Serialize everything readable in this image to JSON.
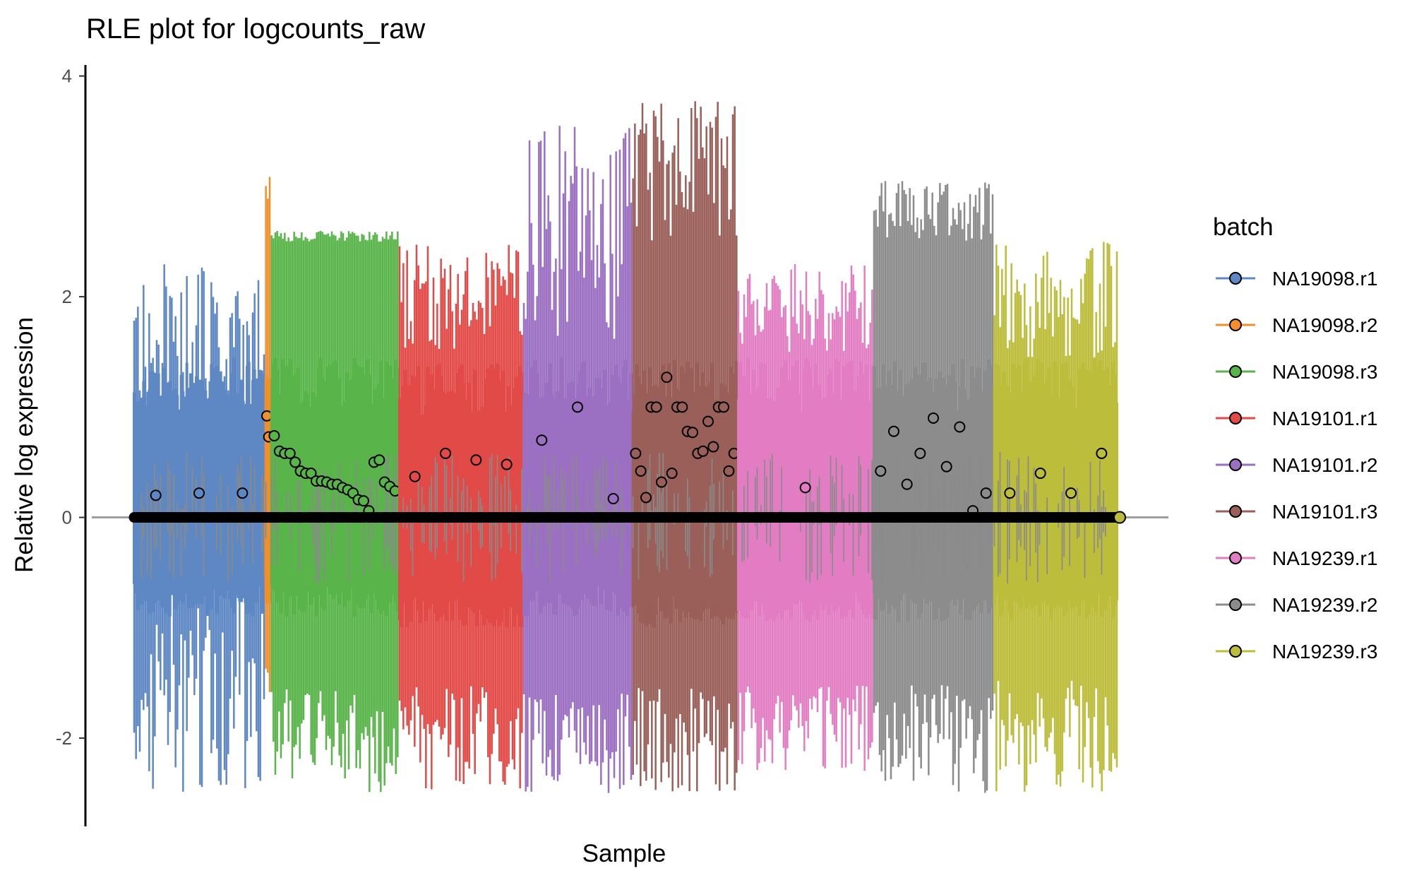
{
  "chart_data": {
    "type": "box",
    "title": "RLE plot for logcounts_raw",
    "xlabel": "Sample",
    "ylabel": "Relative log expression",
    "ylim": [
      -2.8,
      4.1
    ],
    "yticks": [
      -2,
      0,
      2,
      4
    ],
    "reference_line": 0,
    "grid": false,
    "legend": {
      "title": "batch",
      "position": "right",
      "entries": [
        "NA19098.r1",
        "NA19098.r2",
        "NA19098.r3",
        "NA19101.r1",
        "NA19101.r2",
        "NA19101.r3",
        "NA19239.r1",
        "NA19239.r2",
        "NA19239.r3"
      ]
    },
    "series": [
      {
        "name": "NA19098.r1",
        "color": "#5E88C3",
        "n_samples": 70,
        "whisker_high_range": [
          0.8,
          2.3
        ],
        "whisker_low_range": [
          -2.5,
          -0.7
        ],
        "box_high": 1.45,
        "box_low": -0.9,
        "outliers": [
          0.2,
          0.22,
          0.22
        ]
      },
      {
        "name": "NA19098.r2",
        "color": "#F28E2B",
        "n_samples": 3,
        "whisker_high_range": [
          2.7,
          3.1
        ],
        "whisker_low_range": [
          -1.85,
          -1.3
        ],
        "box_high": 1.45,
        "box_low": -0.9,
        "outliers": [
          0.92,
          0.73
        ]
      },
      {
        "name": "NA19098.r3",
        "color": "#59B54A",
        "n_samples": 68,
        "whisker_high_range": [
          2.5,
          2.6
        ],
        "whisker_low_range": [
          -2.5,
          -1.5
        ],
        "box_high": 1.45,
        "box_low": -0.9,
        "outliers": [
          0.74,
          0.6,
          0.58,
          0.58,
          0.5,
          0.42,
          0.4,
          0.4,
          0.33,
          0.33,
          0.32,
          0.3,
          0.3,
          0.27,
          0.25,
          0.22,
          0.16,
          0.15,
          0.06,
          0.5,
          0.52,
          0.32,
          0.28,
          0.24
        ]
      },
      {
        "name": "NA19101.r1",
        "color": "#E24A47",
        "n_samples": 66,
        "whisker_high_range": [
          1.5,
          2.5
        ],
        "whisker_low_range": [
          -2.5,
          -1.5
        ],
        "box_high": 1.4,
        "box_low": -1.0,
        "outliers": [
          0.37,
          0.58,
          0.52,
          0.48
        ]
      },
      {
        "name": "NA19101.r2",
        "color": "#9B6FC2",
        "n_samples": 58,
        "whisker_high_range": [
          1.5,
          3.55
        ],
        "whisker_low_range": [
          -2.5,
          -1.5
        ],
        "box_high": 1.45,
        "box_low": -0.9,
        "outliers": [
          0.7,
          1.0,
          0.17
        ]
      },
      {
        "name": "NA19101.r3",
        "color": "#9A5F58",
        "n_samples": 56,
        "whisker_high_range": [
          2.5,
          3.8
        ],
        "whisker_low_range": [
          -2.5,
          -1.5
        ],
        "box_high": 1.45,
        "box_low": -1.0,
        "outliers": [
          0.58,
          0.42,
          0.18,
          1.0,
          1.0,
          0.32,
          1.27,
          0.4,
          1.0,
          1.0,
          0.78,
          0.77,
          0.58,
          0.6,
          0.87,
          0.64,
          1.0,
          1.0,
          0.42,
          0.58
        ]
      },
      {
        "name": "NA19239.r1",
        "color": "#E37DC3",
        "n_samples": 72,
        "whisker_high_range": [
          1.5,
          2.3
        ],
        "whisker_low_range": [
          -2.3,
          -1.5
        ],
        "box_high": 1.45,
        "box_low": -0.95,
        "outliers": [
          0.27
        ]
      },
      {
        "name": "NA19239.r2",
        "color": "#8C8C8C",
        "n_samples": 64,
        "whisker_high_range": [
          2.5,
          3.05
        ],
        "whisker_low_range": [
          -2.5,
          -1.5
        ],
        "box_high": 1.45,
        "box_low": -0.95,
        "outliers": [
          0.42,
          0.78,
          0.3,
          0.58,
          0.9,
          0.46,
          0.82,
          0.06,
          0.22
        ]
      },
      {
        "name": "NA19239.r3",
        "color": "#BCBD3A",
        "n_samples": 66,
        "whisker_high_range": [
          1.45,
          2.5
        ],
        "whisker_low_range": [
          -2.5,
          -1.45
        ],
        "box_high": 1.45,
        "box_low": -0.95,
        "outliers": [
          0.22,
          0.4,
          0.22,
          0.58
        ]
      }
    ],
    "median_line_color": "#000000",
    "median_value": 0
  }
}
